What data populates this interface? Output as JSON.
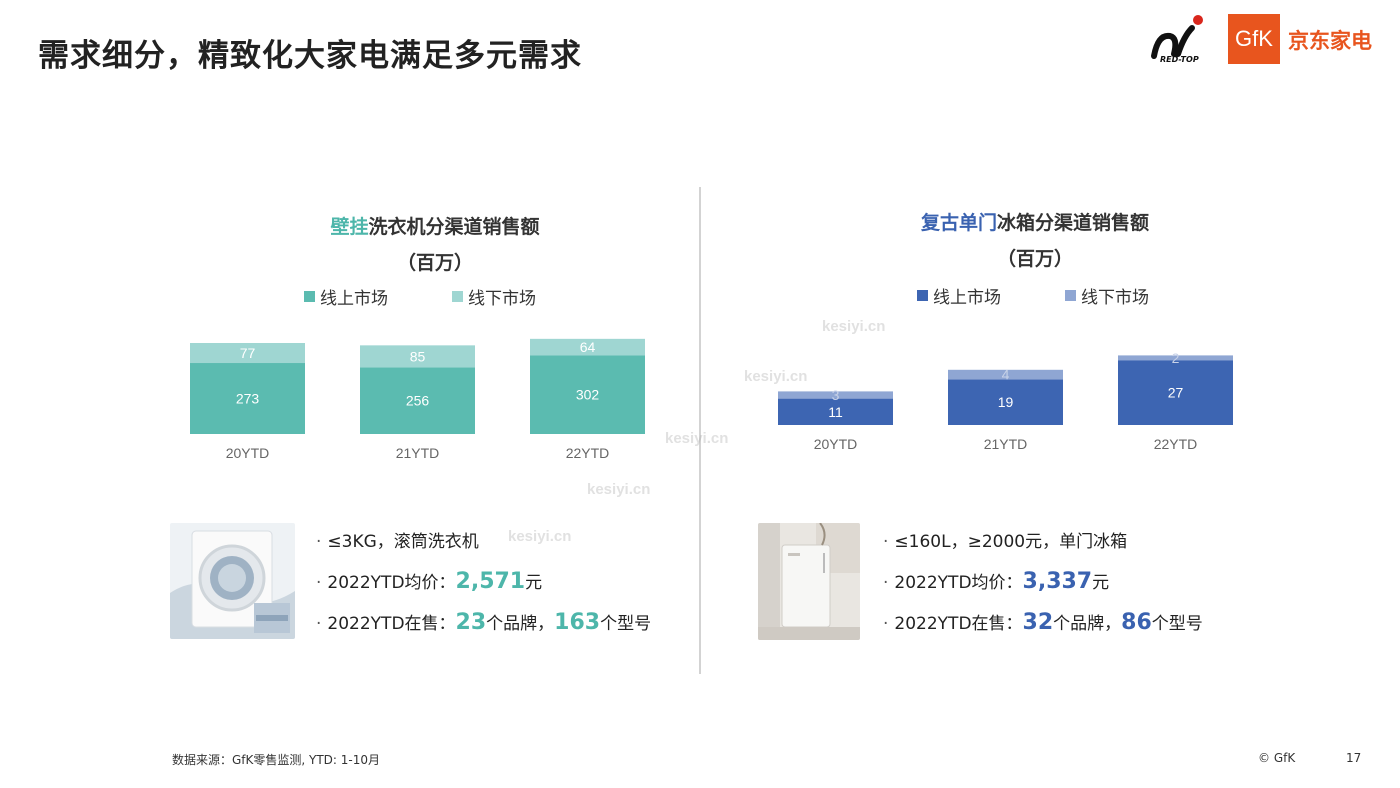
{
  "title": "需求细分，精致化大家电满足多元需求",
  "logos": {
    "redtop_text": "RED-TOP",
    "gfk_text": "GfK",
    "jd_text": "京东家电"
  },
  "left": {
    "title_highlight": "壁挂",
    "title_rest": "洗衣机分渠道销售额",
    "unit": "（百万）",
    "highlight_color": "#4db6aa",
    "bullets": {
      "b1": "≤3KG，滚筒洗衣机",
      "b2_prefix": "2022YTD均价：",
      "b2_value": "2,571",
      "b2_suffix": "元",
      "b3_prefix": "2022YTD在售：",
      "b3_v1": "23",
      "b3_mid": "个品牌，",
      "b3_v2": "163",
      "b3_suffix": "个型号"
    }
  },
  "right": {
    "title_highlight": "复古单门",
    "title_rest": "冰箱分渠道销售额",
    "unit": "（百万）",
    "highlight_color": "#3a62b0",
    "bullets": {
      "b1": "≤160L，≥2000元，单门冰箱",
      "b2_prefix": "2022YTD均价：",
      "b2_value": "3,337",
      "b2_suffix": "元",
      "b3_prefix": "2022YTD在售：",
      "b3_v1": "32",
      "b3_mid": "个品牌，",
      "b3_v2": "86",
      "b3_suffix": "个型号"
    }
  },
  "chart_data": [
    {
      "type": "bar",
      "stacked": true,
      "title": "壁挂洗衣机分渠道销售额",
      "unit": "（百万）",
      "categories": [
        "20YTD",
        "21YTD",
        "22YTD"
      ],
      "series": [
        {
          "name": "线上市场",
          "values": [
            273,
            256,
            302
          ],
          "color": "#5bbbb0"
        },
        {
          "name": "线下市场",
          "values": [
            77,
            85,
            64
          ],
          "color": "#9fd6d2"
        }
      ],
      "legend_position": "top"
    },
    {
      "type": "bar",
      "stacked": true,
      "title": "复古单门冰箱分渠道销售额",
      "unit": "（百万）",
      "categories": [
        "20YTD",
        "21YTD",
        "22YTD"
      ],
      "series": [
        {
          "name": "线上市场",
          "values": [
            11,
            19,
            27
          ],
          "color": "#3d65b2"
        },
        {
          "name": "线下市场",
          "values": [
            3,
            4,
            2
          ],
          "color": "#8fa6d3"
        }
      ],
      "legend_position": "top"
    }
  ],
  "watermark": "kesiyi.cn",
  "source": "数据来源：GfK零售监测, YTD: 1-10月",
  "copyright": "© GfK",
  "page_number": "17"
}
